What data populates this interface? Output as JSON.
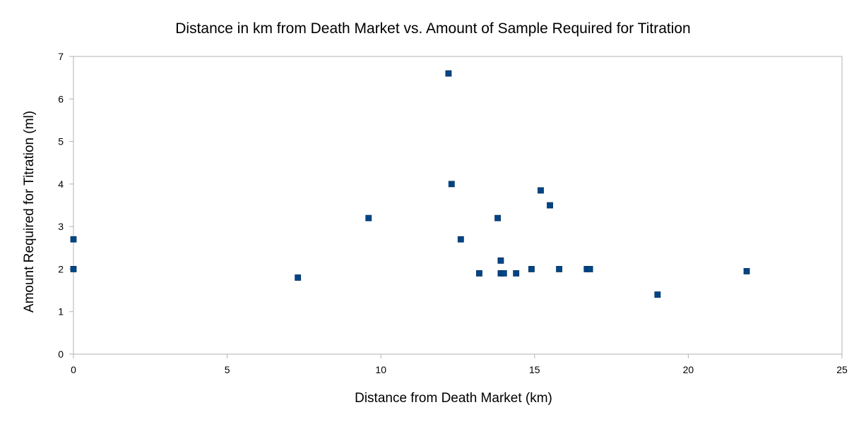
{
  "chart_data": {
    "type": "scatter",
    "title": "Distance in km from Death Market vs. Amount of Sample Required for Titration",
    "xlabel": "Distance from Death Market (km)",
    "ylabel": "Amount Required for Titration (ml)",
    "xlim": [
      0,
      25
    ],
    "ylim": [
      0,
      7
    ],
    "x_ticks": [
      0,
      5,
      10,
      15,
      20,
      25
    ],
    "y_ticks": [
      0,
      1,
      2,
      3,
      4,
      5,
      6,
      7
    ],
    "grid": false,
    "legend": "none",
    "marker": "square",
    "color": "#004586",
    "series": [
      {
        "points": [
          {
            "x": 0,
            "y": 2.7
          },
          {
            "x": 0,
            "y": 2.0
          },
          {
            "x": 7.3,
            "y": 1.8
          },
          {
            "x": 9.6,
            "y": 3.2
          },
          {
            "x": 12.2,
            "y": 6.6
          },
          {
            "x": 12.3,
            "y": 4.0
          },
          {
            "x": 12.6,
            "y": 2.7
          },
          {
            "x": 13.2,
            "y": 1.9
          },
          {
            "x": 13.8,
            "y": 3.2
          },
          {
            "x": 13.9,
            "y": 2.2
          },
          {
            "x": 13.9,
            "y": 1.9
          },
          {
            "x": 14.0,
            "y": 1.9
          },
          {
            "x": 14.4,
            "y": 1.9
          },
          {
            "x": 14.9,
            "y": 2.0
          },
          {
            "x": 15.2,
            "y": 3.85
          },
          {
            "x": 15.5,
            "y": 3.5
          },
          {
            "x": 15.8,
            "y": 2.0
          },
          {
            "x": 16.7,
            "y": 2.0
          },
          {
            "x": 16.8,
            "y": 2.0
          },
          {
            "x": 19.0,
            "y": 1.4
          },
          {
            "x": 21.9,
            "y": 1.95
          }
        ]
      }
    ]
  }
}
